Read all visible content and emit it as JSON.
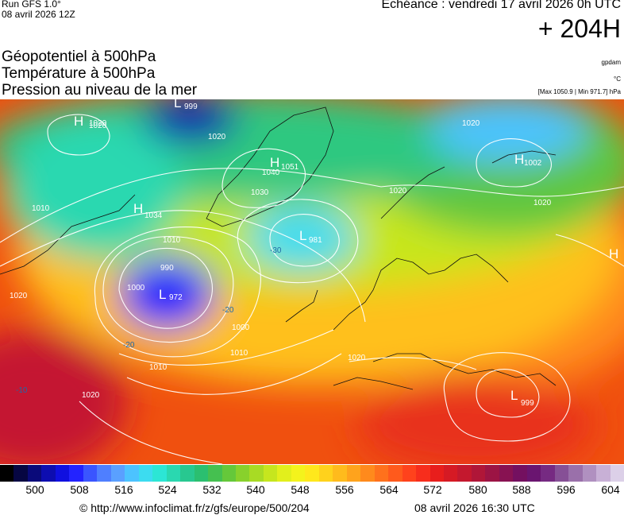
{
  "header": {
    "run": "Run GFS 1.0°",
    "run_date": "08 avril 2026 12Z",
    "valid": "Echéance : vendredi 17 avril 2026 0h UTC",
    "lead": "+ 204H"
  },
  "layers": {
    "geopotential": "Géopotentiel à 500hPa",
    "temperature": "Température à 500hPa",
    "pressure": "Pression au niveau de la mer"
  },
  "units": {
    "geopotential": "gpdam",
    "temperature": "°C",
    "range": "[Max 1050.9 | Min 971.7] hPa"
  },
  "pressure_centers": [
    {
      "type": "H",
      "value": "1020"
    },
    {
      "type": "L",
      "value": "999"
    },
    {
      "type": "H",
      "value": "1051"
    },
    {
      "type": "H",
      "value": "1034"
    },
    {
      "type": "L",
      "value": "981"
    },
    {
      "type": "L",
      "value": "972"
    },
    {
      "type": "H",
      "value": "1002"
    },
    {
      "type": "H",
      "value": ""
    },
    {
      "type": "L",
      "value": "999"
    }
  ],
  "isobar_labels": [
    "1020",
    "1010",
    "1000",
    "990",
    "1020",
    "1030",
    "1040",
    "1020",
    "1020",
    "1010",
    "1000",
    "1010",
    "1020",
    "1020",
    "1010",
    "1020",
    "1020"
  ],
  "isotherm_labels": [
    "-20",
    "-20",
    "-10",
    "-30"
  ],
  "colorbar": {
    "colors": [
      "#000000",
      "#060642",
      "#0a0a7a",
      "#0d0db0",
      "#1010e0",
      "#2323ff",
      "#3a55ff",
      "#4f7fff",
      "#5aa0ff",
      "#4cc3ff",
      "#3cdcf0",
      "#2ce6d5",
      "#2ad8b0",
      "#28c890",
      "#2bbf70",
      "#45c050",
      "#65c83a",
      "#88d12c",
      "#a8db24",
      "#c6e61e",
      "#e2ef1c",
      "#f4f31c",
      "#ffe81c",
      "#ffd21c",
      "#ffbb1c",
      "#ffa31c",
      "#ff8a1c",
      "#ff711c",
      "#ff5a1c",
      "#ff421c",
      "#f72d1c",
      "#e81e1c",
      "#d61a24",
      "#c4182e",
      "#b01638",
      "#9c1444",
      "#881252",
      "#741060",
      "#6a1570",
      "#762a82",
      "#865096",
      "#9a70aa",
      "#b090c0",
      "#c8b0d6",
      "#dcd0e8"
    ],
    "labels": [
      "500",
      "508",
      "516",
      "524",
      "532",
      "540",
      "548",
      "556",
      "564",
      "572",
      "580",
      "588",
      "596",
      "604"
    ]
  },
  "footer": {
    "copyright": "© http://www.infoclimat.fr/z/gfs/europe/500/204",
    "generated": "08 avril 2026 16:30 UTC"
  }
}
